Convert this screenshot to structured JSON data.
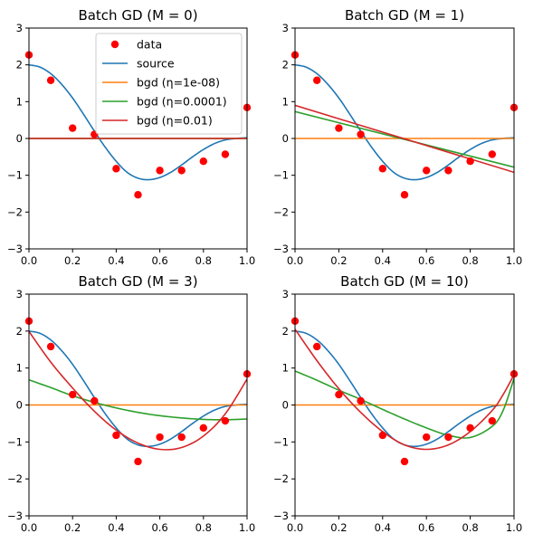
{
  "colors": {
    "data": "#ff0000",
    "source": "#1f77b4",
    "bgd_small": "#ff7f0e",
    "bgd_mid": "#2ca02c",
    "bgd_large": "#d62728"
  },
  "legend": {
    "location": "upper-right of first subplot",
    "entries": [
      {
        "label": "data",
        "color_key": "data",
        "kind": "marker"
      },
      {
        "label": "source",
        "color_key": "source",
        "kind": "line"
      },
      {
        "label": "bgd (η=1e-08)",
        "color_key": "bgd_small",
        "kind": "line"
      },
      {
        "label": "bgd (η=0.0001)",
        "color_key": "bgd_mid",
        "kind": "line"
      },
      {
        "label": "bgd (η=0.01)",
        "color_key": "bgd_large",
        "kind": "line"
      }
    ]
  },
  "chart_data": [
    {
      "type": "line",
      "title": "Batch GD (M = 0)",
      "xlim": [
        0,
        1
      ],
      "ylim": [
        -3,
        3
      ],
      "xticks": [
        "0.0",
        "0.2",
        "0.4",
        "0.6",
        "0.8",
        "1.0"
      ],
      "yticks": [
        "−3",
        "−2",
        "−1",
        "0",
        "1",
        "2",
        "3"
      ],
      "grid": false,
      "data_points": {
        "x": [
          0.0,
          0.1,
          0.2,
          0.3,
          0.4,
          0.5,
          0.6,
          0.7,
          0.8,
          0.9,
          1.0
        ],
        "y": [
          2.27,
          1.58,
          0.28,
          0.11,
          -0.82,
          -1.53,
          -0.87,
          -0.87,
          -0.62,
          -0.43,
          0.84
        ]
      },
      "series": [
        {
          "name": "bgd (η=1e-08)",
          "color_key": "bgd_small",
          "x": [
            0,
            1
          ],
          "y": [
            0,
            0
          ]
        },
        {
          "name": "bgd (η=0.0001)",
          "color_key": "bgd_mid",
          "x": [
            0,
            1
          ],
          "y": [
            0,
            0
          ]
        },
        {
          "name": "bgd (η=0.01)",
          "color_key": "bgd_large",
          "x": [
            0,
            1
          ],
          "y": [
            0,
            0
          ]
        }
      ]
    },
    {
      "type": "line",
      "title": "Batch GD (M = 1)",
      "xlim": [
        0,
        1
      ],
      "ylim": [
        -3,
        3
      ],
      "xticks": [
        "0.0",
        "0.2",
        "0.4",
        "0.6",
        "0.8",
        "1.0"
      ],
      "yticks": [
        "−3",
        "−2",
        "−1",
        "0",
        "1",
        "2",
        "3"
      ],
      "grid": false,
      "data_points": {
        "x": [
          0.0,
          0.1,
          0.2,
          0.3,
          0.4,
          0.5,
          0.6,
          0.7,
          0.8,
          0.9,
          1.0
        ],
        "y": [
          2.27,
          1.58,
          0.28,
          0.11,
          -0.82,
          -1.53,
          -0.87,
          -0.87,
          -0.62,
          -0.43,
          0.84
        ]
      },
      "series": [
        {
          "name": "bgd (η=1e-08)",
          "color_key": "bgd_small",
          "x": [
            0,
            1
          ],
          "y": [
            0,
            0
          ]
        },
        {
          "name": "bgd (η=0.0001)",
          "color_key": "bgd_mid",
          "x": [
            0,
            1
          ],
          "y": [
            0.73,
            -0.78
          ]
        },
        {
          "name": "bgd (η=0.01)",
          "color_key": "bgd_large",
          "x": [
            0,
            1
          ],
          "y": [
            0.9,
            -0.92
          ]
        }
      ]
    },
    {
      "type": "line",
      "title": "Batch GD (M = 3)",
      "xlim": [
        0,
        1
      ],
      "ylim": [
        -3,
        3
      ],
      "xticks": [
        "0.0",
        "0.2",
        "0.4",
        "0.6",
        "0.8",
        "1.0"
      ],
      "yticks": [
        "−3",
        "−2",
        "−1",
        "0",
        "1",
        "2",
        "3"
      ],
      "grid": false,
      "data_points": {
        "x": [
          0.0,
          0.1,
          0.2,
          0.3,
          0.4,
          0.5,
          0.6,
          0.7,
          0.8,
          0.9,
          1.0
        ],
        "y": [
          2.27,
          1.58,
          0.28,
          0.11,
          -0.82,
          -1.53,
          -0.87,
          -0.87,
          -0.62,
          -0.43,
          0.84
        ]
      },
      "series": [
        {
          "name": "bgd (η=1e-08)",
          "color_key": "bgd_small",
          "x": [
            0,
            1
          ],
          "y": [
            0,
            0
          ]
        },
        {
          "name": "bgd (η=0.0001)",
          "color_key": "bgd_mid",
          "x": [
            0.0,
            0.1,
            0.2,
            0.3,
            0.4,
            0.5,
            0.6,
            0.7,
            0.8,
            0.9,
            1.0
          ],
          "y": [
            0.68,
            0.47,
            0.25,
            0.07,
            -0.08,
            -0.2,
            -0.29,
            -0.35,
            -0.39,
            -0.4,
            -0.38
          ]
        },
        {
          "name": "bgd (η=0.01)",
          "color_key": "bgd_large",
          "x": [
            0.0,
            0.1,
            0.2,
            0.3,
            0.4,
            0.5,
            0.6,
            0.7,
            0.8,
            0.9,
            1.0
          ],
          "y": [
            1.99,
            1.16,
            0.46,
            -0.17,
            -0.68,
            -1.03,
            -1.2,
            -1.15,
            -0.84,
            -0.24,
            0.7
          ]
        }
      ]
    },
    {
      "type": "line",
      "title": "Batch GD (M = 10)",
      "xlim": [
        0,
        1
      ],
      "ylim": [
        -3,
        3
      ],
      "xticks": [
        "0.0",
        "0.2",
        "0.4",
        "0.6",
        "0.8",
        "1.0"
      ],
      "yticks": [
        "−3",
        "−2",
        "−1",
        "0",
        "1",
        "2",
        "3"
      ],
      "grid": false,
      "data_points": {
        "x": [
          0.0,
          0.1,
          0.2,
          0.3,
          0.4,
          0.5,
          0.6,
          0.7,
          0.8,
          0.9,
          1.0
        ],
        "y": [
          2.27,
          1.58,
          0.28,
          0.11,
          -0.82,
          -1.53,
          -0.87,
          -0.87,
          -0.62,
          -0.43,
          0.84
        ]
      },
      "series": [
        {
          "name": "bgd (η=1e-08)",
          "color_key": "bgd_small",
          "x": [
            0,
            1
          ],
          "y": [
            0,
            0
          ]
        },
        {
          "name": "bgd (η=0.0001)",
          "color_key": "bgd_mid",
          "x": [
            0.0,
            0.1,
            0.2,
            0.3,
            0.4,
            0.5,
            0.6,
            0.7,
            0.8,
            0.9,
            0.95,
            1.0
          ],
          "y": [
            0.92,
            0.67,
            0.4,
            0.15,
            -0.12,
            -0.38,
            -0.62,
            -0.82,
            -0.88,
            -0.58,
            -0.15,
            0.72
          ]
        },
        {
          "name": "bgd (η=0.01)",
          "color_key": "bgd_large",
          "x": [
            0.0,
            0.1,
            0.2,
            0.3,
            0.4,
            0.5,
            0.6,
            0.7,
            0.8,
            0.9,
            0.95,
            1.0
          ],
          "y": [
            2.05,
            1.2,
            0.44,
            -0.2,
            -0.72,
            -1.08,
            -1.2,
            -1.08,
            -0.72,
            -0.15,
            0.28,
            0.82
          ]
        }
      ]
    }
  ]
}
